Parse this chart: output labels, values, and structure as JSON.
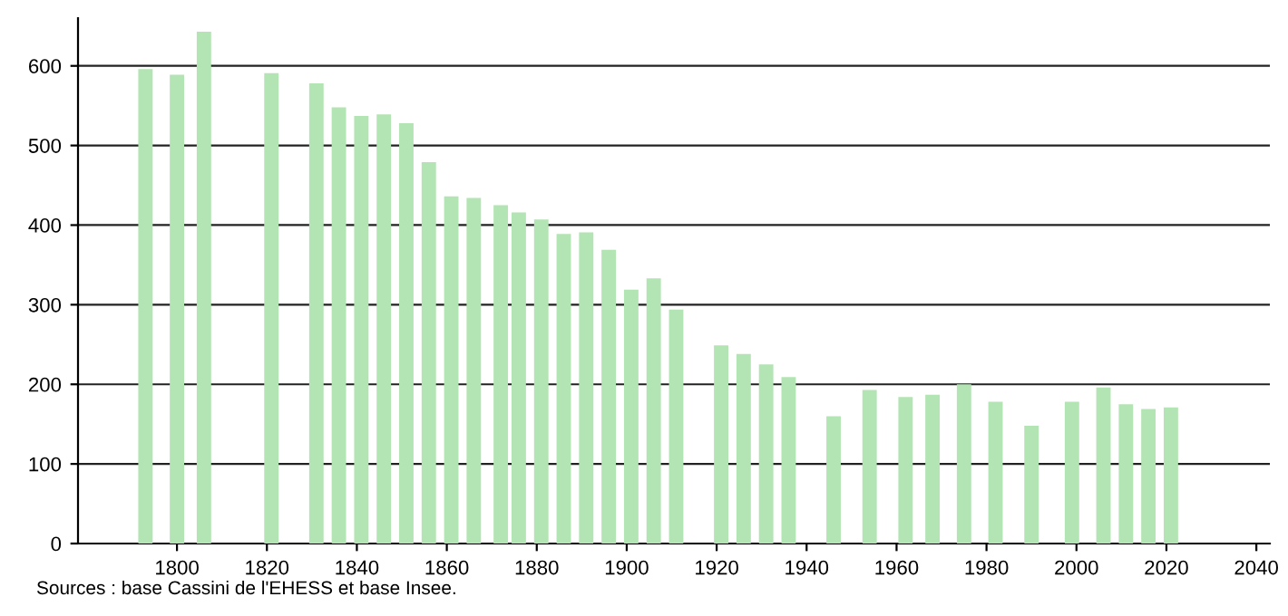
{
  "chart_data": {
    "type": "bar",
    "x": [
      1793,
      1800,
      1806,
      1821,
      1831,
      1836,
      1841,
      1846,
      1851,
      1856,
      1861,
      1866,
      1872,
      1876,
      1881,
      1886,
      1891,
      1896,
      1901,
      1906,
      1911,
      1921,
      1926,
      1931,
      1936,
      1946,
      1954,
      1962,
      1968,
      1975,
      1982,
      1990,
      1999,
      2006,
      2011,
      2016,
      2021
    ],
    "values": [
      596,
      589,
      643,
      591,
      578,
      548,
      537,
      539,
      528,
      479,
      436,
      434,
      425,
      416,
      407,
      389,
      391,
      369,
      319,
      333,
      294,
      249,
      238,
      225,
      209,
      160,
      193,
      184,
      187,
      200,
      178,
      148,
      178,
      196,
      175,
      169,
      171
    ],
    "color": "#b3e4b3",
    "xlim": [
      1778,
      2043
    ],
    "xticks": [
      1800,
      1820,
      1840,
      1860,
      1880,
      1900,
      1920,
      1940,
      1960,
      1980,
      2000,
      2020,
      2040
    ],
    "ylim": [
      0,
      660
    ],
    "yticks": [
      0,
      100,
      200,
      300,
      400,
      500,
      600
    ],
    "grid": "y",
    "annotations": [
      "Sources : base Cassini de l'EHESS et base Insee."
    ]
  }
}
